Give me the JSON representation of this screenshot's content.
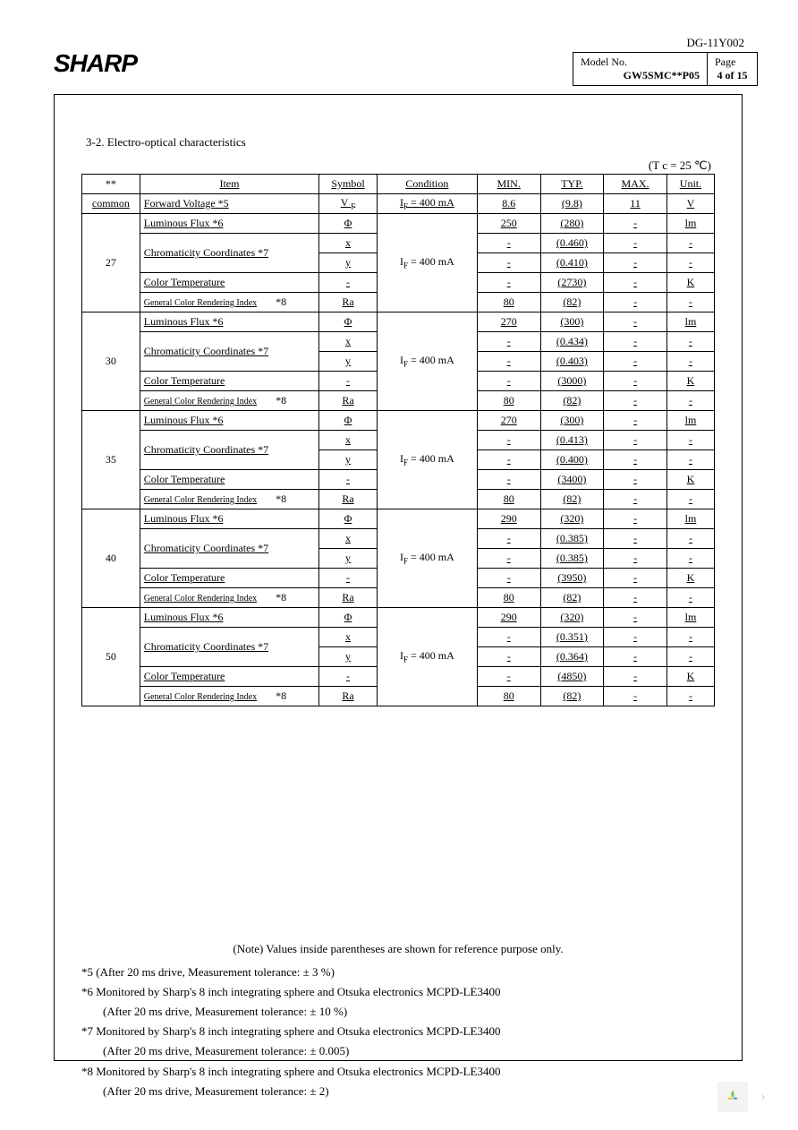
{
  "doc_id": "DG-11Y002",
  "brand": "SHARP",
  "header": {
    "model_label": "Model No.",
    "model_value": "GW5SMC**P05",
    "page_label": "Page",
    "page_value": "4 of 15"
  },
  "section_title": "3-2. Electro-optical characteristics",
  "temp_condition": "(T c = 25 ℃)",
  "table_head": {
    "star": "**",
    "item": "Item",
    "symbol": "Symbol",
    "condition": "Condition",
    "min": "MIN.",
    "typ": "TYP.",
    "max": "MAX.",
    "unit": "Unit."
  },
  "common_row": {
    "label": "common",
    "item": "Forward Voltage *5",
    "symbol": "V",
    "symbol_sub": "F",
    "condition": "IF =    400    mA",
    "min": "8.6",
    "typ": "(9.8)",
    "max": "11",
    "unit": "V"
  },
  "groups": [
    {
      "code": "27",
      "cond": "IF = 400 mA",
      "rows": [
        {
          "item": "Luminous Flux *6",
          "sym": "Φ",
          "min": "250",
          "typ": "(280)",
          "max": "-",
          "unit": "lm"
        },
        {
          "item": "Chromaticity Coordinates *7",
          "sym": "x",
          "min": "-",
          "typ": "(0.460)",
          "max": "-",
          "unit": "-",
          "rowspan_item": 2
        },
        {
          "item": "",
          "sym": "y",
          "min": "-",
          "typ": "(0.410)",
          "max": "-",
          "unit": "-"
        },
        {
          "item": "Color Temperature",
          "sym": "-",
          "min": "-",
          "typ": "(2730)",
          "max": "-",
          "unit": "K"
        },
        {
          "item": "General Color Rendering Index",
          "item_small": true,
          "note": "*8",
          "sym": "Ra",
          "min": "80",
          "typ": "(82)",
          "max": "-",
          "unit": "-"
        }
      ]
    },
    {
      "code": "30",
      "cond": "IF = 400      mA",
      "rows": [
        {
          "item": "Luminous Flux *6",
          "sym": "Φ",
          "min": "270",
          "typ": "(300)",
          "max": "-",
          "unit": "lm"
        },
        {
          "item": "Chromaticity Coordinates *7",
          "sym": "x",
          "min": "-",
          "typ": "(0.434)",
          "max": "-",
          "unit": "-",
          "rowspan_item": 2
        },
        {
          "item": "",
          "sym": "y",
          "min": "-",
          "typ": "(0.403)",
          "max": "-",
          "unit": "-"
        },
        {
          "item": "Color Temperature",
          "sym": "-",
          "min": "-",
          "typ": "(3000)",
          "max": "-",
          "unit": "K"
        },
        {
          "item": "General Color Rendering Index",
          "item_small": true,
          "note": "*8",
          "sym": "Ra",
          "min": "80",
          "typ": "(82)",
          "max": "-",
          "unit": "-"
        }
      ]
    },
    {
      "code": "35",
      "cond": "IF = 400      mA",
      "rows": [
        {
          "item": "Luminous Flux *6",
          "sym": "Φ",
          "min": "270",
          "typ": "(300)",
          "max": "-",
          "unit": "lm"
        },
        {
          "item": "Chromaticity Coordinates *7",
          "sym": "x",
          "min": "-",
          "typ": "(0.413)",
          "max": "-",
          "unit": "-",
          "rowspan_item": 2
        },
        {
          "item": "",
          "sym": "y",
          "min": "-",
          "typ": "(0.400)",
          "max": "-",
          "unit": "-"
        },
        {
          "item": "Color Temperature",
          "sym": "-",
          "min": "-",
          "typ": "(3400)",
          "max": "-",
          "unit": "K"
        },
        {
          "item": "General Color Rendering Index",
          "item_small": true,
          "note": "*8",
          "sym": "Ra",
          "min": "80",
          "typ": "(82)",
          "max": "-",
          "unit": "-"
        }
      ]
    },
    {
      "code": "40",
      "cond": "IF =   400 mA",
      "rows": [
        {
          "item": "Luminous Flux *6",
          "sym": "Φ",
          "min": "290",
          "typ": "(320)",
          "max": "-",
          "unit": "lm"
        },
        {
          "item": "Chromaticity Coordinates *7",
          "sym": "x",
          "min": "-",
          "typ": "(0.385)",
          "max": "-",
          "unit": "-",
          "rowspan_item": 2
        },
        {
          "item": "",
          "sym": "y",
          "min": "-",
          "typ": "(0.385)",
          "max": "-",
          "unit": "-"
        },
        {
          "item": "Color Temperature",
          "sym": "-",
          "min": "-",
          "typ": "(3950)",
          "max": "-",
          "unit": "K"
        },
        {
          "item": "General Color Rendering Index",
          "item_small": true,
          "note": "*8",
          "sym": "Ra",
          "min": "80",
          "typ": "(82)",
          "max": "-",
          "unit": "-"
        }
      ]
    },
    {
      "code": "50",
      "cond": "IF =    400 mA",
      "rows": [
        {
          "item": "Luminous Flux *6",
          "sym": "Φ",
          "min": "290",
          "typ": "(320)",
          "max": "-",
          "unit": "lm"
        },
        {
          "item": "Chromaticity Coordinates *7",
          "sym": "x",
          "min": "-",
          "typ": "(0.351)",
          "max": "-",
          "unit": "-",
          "rowspan_item": 2
        },
        {
          "item": "",
          "sym": "y",
          "min": "-",
          "typ": "(0.364)",
          "max": "-",
          "unit": "-"
        },
        {
          "item": "Color Temperature",
          "sym": "-",
          "min": "-",
          "typ": "(4850)",
          "max": "-",
          "unit": "K"
        },
        {
          "item": "General Color Rendering Index",
          "item_small": true,
          "note": "*8",
          "sym": "Ra",
          "min": "80",
          "typ": "(82)",
          "max": "-",
          "unit": "-"
        }
      ]
    }
  ],
  "notes": {
    "lead": "(Note) Values inside parentheses are shown for reference purpose only.",
    "n5": "*5 (After 20 ms drive, Measurement tolerance: ± 3 %)",
    "n6a": "*6 Monitored by Sharp's 8 inch integrating sphere and Otsuka electronics MCPD-LE3400",
    "n6b": "(After 20 ms drive, Measurement tolerance: ± 10 %)",
    "n7a": "*7 Monitored by Sharp's 8 inch integrating sphere and Otsuka electronics MCPD-LE3400",
    "n7b": "(After 20 ms drive, Measurement tolerance: ± 0.005)",
    "n8a": "*8 Monitored by Sharp's 8 inch integrating sphere and Otsuka electronics MCPD-LE3400",
    "n8b": "(After 20 ms drive, Measurement tolerance: ± 2)"
  },
  "footer_arrow": "›",
  "badge_colors": {
    "p1": "#7bbf3f",
    "p2": "#f5c542",
    "p3": "#5aa6d8"
  }
}
